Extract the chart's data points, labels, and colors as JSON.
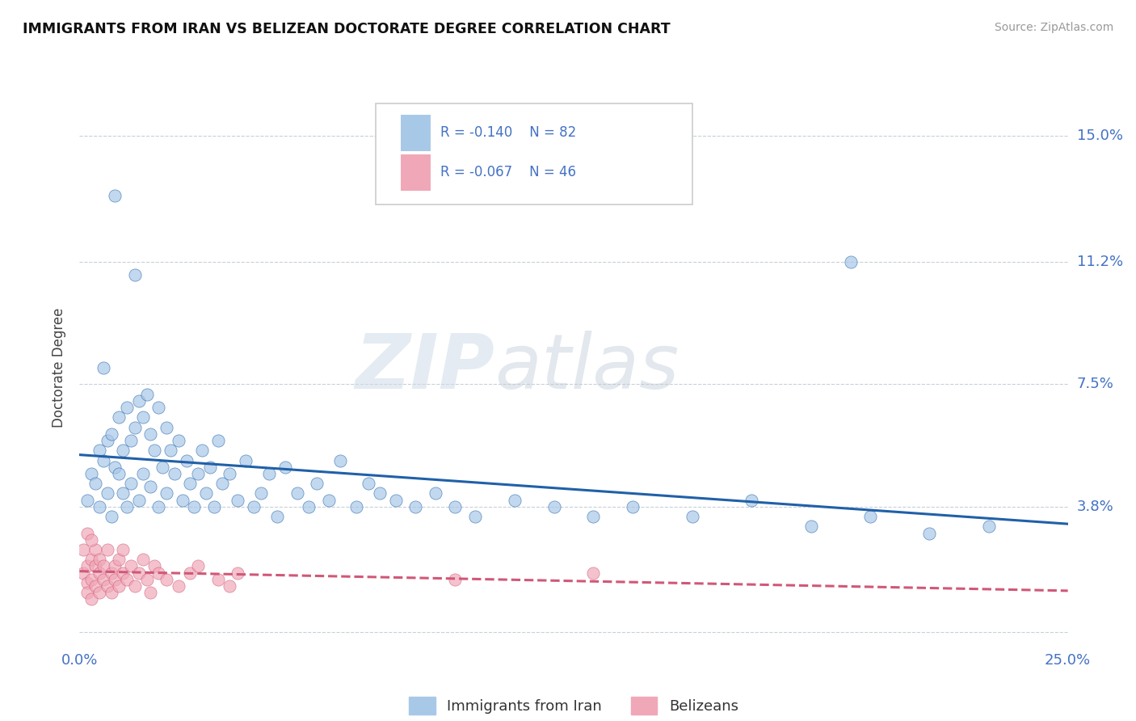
{
  "title": "IMMIGRANTS FROM IRAN VS BELIZEAN DOCTORATE DEGREE CORRELATION CHART",
  "source": "Source: ZipAtlas.com",
  "ylabel": "Doctorate Degree",
  "legend_iran": "Immigrants from Iran",
  "legend_belize": "Belizeans",
  "iran_R": "R = -0.140",
  "iran_N": "N = 82",
  "belize_R": "R = -0.067",
  "belize_N": "N = 46",
  "xlim": [
    0.0,
    0.25
  ],
  "ylim": [
    -0.005,
    0.165
  ],
  "yticks": [
    0.0,
    0.038,
    0.075,
    0.112,
    0.15
  ],
  "ytick_labels": [
    "",
    "3.8%",
    "7.5%",
    "11.2%",
    "15.0%"
  ],
  "xticks": [
    0.0,
    0.25
  ],
  "xtick_labels": [
    "0.0%",
    "25.0%"
  ],
  "color_iran": "#a8c8e8",
  "color_belize": "#f0a8b8",
  "color_iran_line": "#2060a8",
  "color_belize_line": "#d05878",
  "iran_scatter_x": [
    0.002,
    0.003,
    0.004,
    0.005,
    0.005,
    0.006,
    0.007,
    0.007,
    0.008,
    0.008,
    0.009,
    0.01,
    0.01,
    0.011,
    0.011,
    0.012,
    0.012,
    0.013,
    0.013,
    0.014,
    0.015,
    0.015,
    0.016,
    0.016,
    0.017,
    0.018,
    0.018,
    0.019,
    0.02,
    0.02,
    0.021,
    0.022,
    0.022,
    0.023,
    0.024,
    0.025,
    0.026,
    0.027,
    0.028,
    0.029,
    0.03,
    0.031,
    0.032,
    0.033,
    0.034,
    0.035,
    0.036,
    0.038,
    0.04,
    0.042,
    0.044,
    0.046,
    0.048,
    0.05,
    0.052,
    0.055,
    0.058,
    0.06,
    0.063,
    0.066,
    0.07,
    0.073,
    0.076,
    0.08,
    0.085,
    0.09,
    0.095,
    0.1,
    0.11,
    0.12,
    0.13,
    0.14,
    0.155,
    0.17,
    0.185,
    0.2,
    0.215,
    0.23,
    0.006,
    0.009,
    0.014,
    0.195
  ],
  "iran_scatter_y": [
    0.04,
    0.048,
    0.045,
    0.055,
    0.038,
    0.052,
    0.058,
    0.042,
    0.06,
    0.035,
    0.05,
    0.065,
    0.048,
    0.055,
    0.042,
    0.068,
    0.038,
    0.058,
    0.045,
    0.062,
    0.07,
    0.04,
    0.065,
    0.048,
    0.072,
    0.06,
    0.044,
    0.055,
    0.068,
    0.038,
    0.05,
    0.062,
    0.042,
    0.055,
    0.048,
    0.058,
    0.04,
    0.052,
    0.045,
    0.038,
    0.048,
    0.055,
    0.042,
    0.05,
    0.038,
    0.058,
    0.045,
    0.048,
    0.04,
    0.052,
    0.038,
    0.042,
    0.048,
    0.035,
    0.05,
    0.042,
    0.038,
    0.045,
    0.04,
    0.052,
    0.038,
    0.045,
    0.042,
    0.04,
    0.038,
    0.042,
    0.038,
    0.035,
    0.04,
    0.038,
    0.035,
    0.038,
    0.035,
    0.04,
    0.032,
    0.035,
    0.03,
    0.032,
    0.08,
    0.132,
    0.108,
    0.112
  ],
  "belize_scatter_x": [
    0.001,
    0.001,
    0.002,
    0.002,
    0.002,
    0.003,
    0.003,
    0.003,
    0.004,
    0.004,
    0.004,
    0.005,
    0.005,
    0.005,
    0.006,
    0.006,
    0.007,
    0.007,
    0.008,
    0.008,
    0.009,
    0.009,
    0.01,
    0.01,
    0.011,
    0.011,
    0.012,
    0.013,
    0.014,
    0.015,
    0.016,
    0.017,
    0.018,
    0.019,
    0.02,
    0.022,
    0.025,
    0.028,
    0.03,
    0.035,
    0.038,
    0.04,
    0.095,
    0.13,
    0.002,
    0.003
  ],
  "belize_scatter_y": [
    0.018,
    0.025,
    0.015,
    0.02,
    0.012,
    0.022,
    0.016,
    0.01,
    0.02,
    0.014,
    0.025,
    0.018,
    0.012,
    0.022,
    0.016,
    0.02,
    0.014,
    0.025,
    0.018,
    0.012,
    0.02,
    0.016,
    0.022,
    0.014,
    0.018,
    0.025,
    0.016,
    0.02,
    0.014,
    0.018,
    0.022,
    0.016,
    0.012,
    0.02,
    0.018,
    0.016,
    0.014,
    0.018,
    0.02,
    0.016,
    0.014,
    0.018,
    0.016,
    0.018,
    0.03,
    0.028
  ]
}
